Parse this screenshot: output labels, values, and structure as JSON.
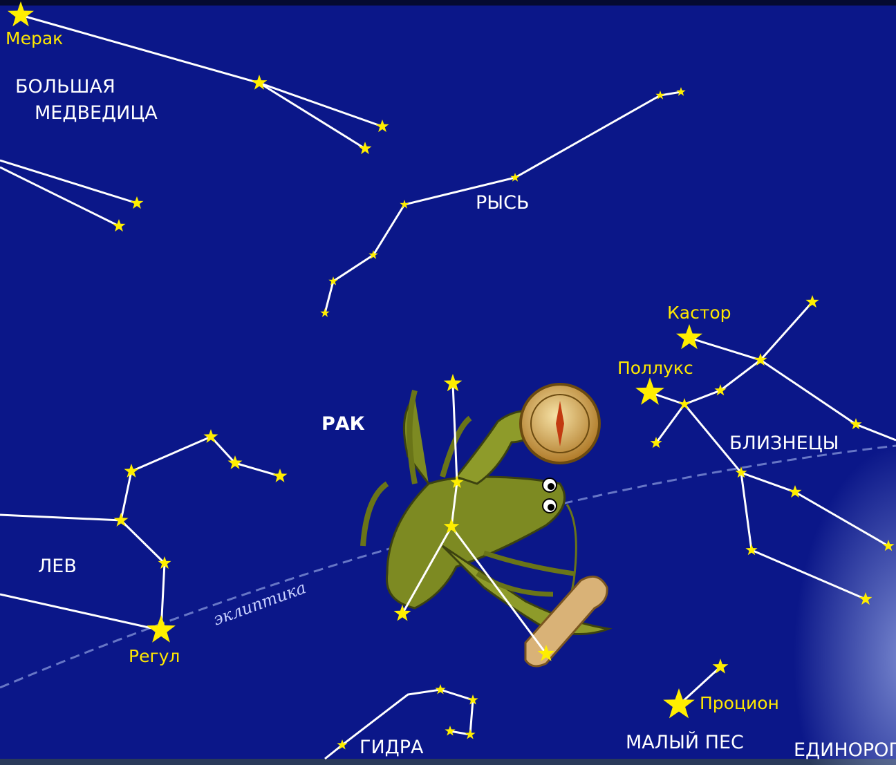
{
  "stars": {
    "merak": "Мерак",
    "castor": "Кастор",
    "pollux": "Поллукс",
    "regulus": "Регул",
    "procyon": "Процион"
  },
  "constellations": {
    "ursa_major": [
      "БОЛЬШАЯ",
      "МЕДВЕДИЦА"
    ],
    "lynx": "РЫСЬ",
    "cancer": "РАК",
    "gemini": "БЛИЗНЕЦЫ",
    "leo": "ЛЕВ",
    "hydra": "ГИДРА",
    "canis_minor": "МАЛЫЙ ПЕС",
    "monoceros": "ЕДИНОРОГ"
  },
  "ecliptic": "эклиптика"
}
